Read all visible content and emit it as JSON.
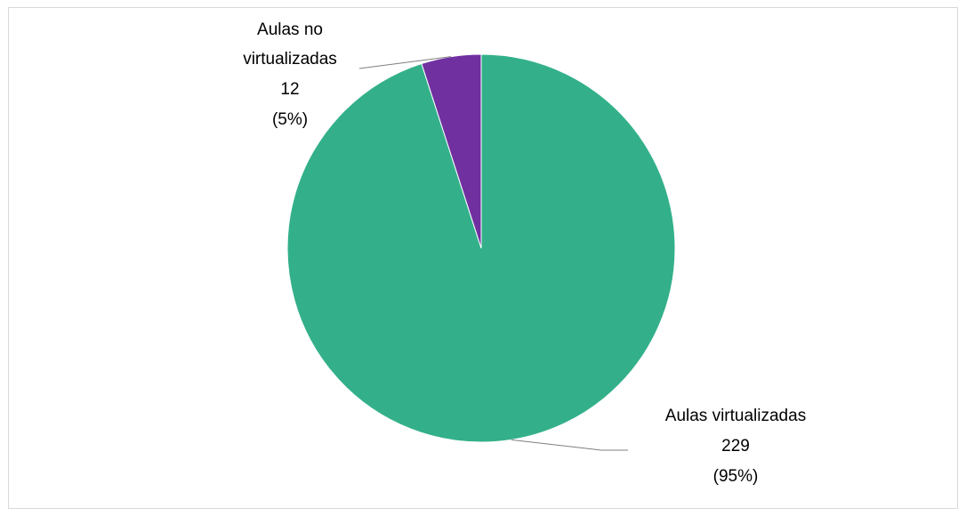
{
  "chart_data": {
    "type": "pie",
    "slices": [
      {
        "label": "Aulas virtualizadas",
        "value": 229,
        "percent": "95%",
        "color": "#33b08a"
      },
      {
        "label": "Aulas no virtualizadas",
        "value": 12,
        "percent": "5%",
        "color": "#7030a0"
      }
    ],
    "start_angle_deg": 0,
    "direction": "clockwise",
    "data_labels": [
      {
        "lines": [
          "Aulas no",
          "virtualizadas",
          "12",
          "(5%)"
        ]
      },
      {
        "lines": [
          "Aulas virtualizadas",
          "229",
          "(95%)"
        ]
      }
    ],
    "legend": "none"
  },
  "colors": {
    "border": "#d9d9d9",
    "leader_line": "#7f7f7f"
  }
}
